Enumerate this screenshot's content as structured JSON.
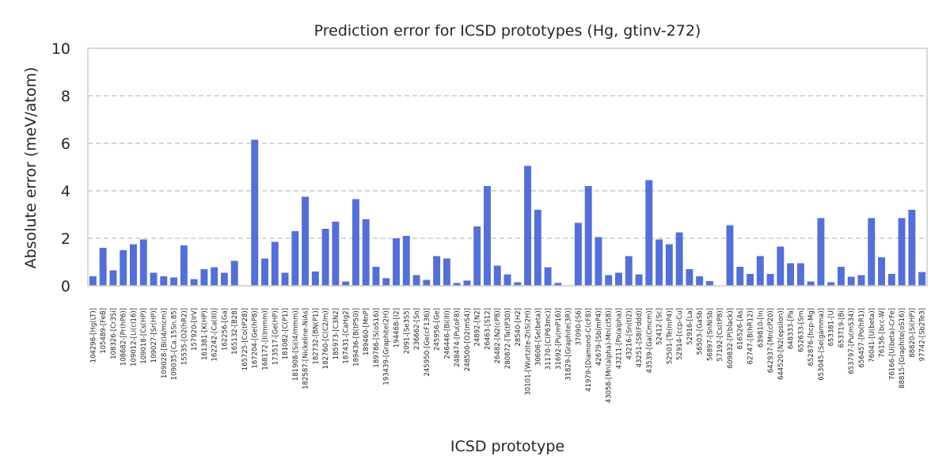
{
  "chart_data": {
    "type": "bar",
    "title": "Prediction error for ICSD prototypes (Hg, gtinv-272)",
    "xlabel": "ICSD prototype",
    "ylabel": "Absolute error (meV/atom)",
    "ylim": [
      0,
      10
    ],
    "yticks": [
      0,
      2,
      4,
      6,
      8,
      10
    ],
    "grid": "y-dashed",
    "bar_color": "#5470d6",
    "grid_color": "#cccccc",
    "categories": [
      "104296-[Hg(LT)]",
      "105489-[FeB]",
      "108326-[Cr3Si]",
      "108682-[Pr(hP6)]",
      "109012-[Li(cI16)]",
      "109018-[Cs(HP)]",
      "109027-[Sr(HP)]",
      "109028-[Bi(I4/mcm)]",
      "109035-[Ca.15Sn.85]",
      "15535-[O2(hR2)]",
      "157920-[IrV]",
      "161381-[K(HP)]",
      "162242-[Ca(III)]",
      "162256-[Ga]",
      "165132-[B28]",
      "165725-[Co(tP28)]",
      "167204-[Ge(hP8)]",
      "168172-[I(Immm)]",
      "173517-[Ge(HP)]",
      "181082-[C(P1)]",
      "181908-[Si(I4/mmm)]",
      "182587-[Nickeline-NiAs]",
      "182732-[BN(P1)]",
      "182760-[C(C2/m)]",
      "185973-[C3N2]",
      "187431-[CaHg2]",
      "189436-[B(tP50)]",
      "189460-[MnP]",
      "189786-[S(oS16)]",
      "193439-[Graphite(2H)]",
      "194468-[I2]",
      "2091-[Se3S5]",
      "236662-[Sn]",
      "245950-[Ge(cF136)]",
      "245956-[Ge]",
      "246446-[Bi(III)]",
      "248474-[Pu(oF8)]",
      "248500-[O2(mS4)]",
      "24892-[N2]",
      "26463-[S12]",
      "26482-[N2(cP8)]",
      "280872-[Ta(tP30)]",
      "28540-[H2]",
      "30101-[Wurtzite-ZnS(2H)]",
      "30606-[Se(beta)]",
      "31170-[C(P63mc)]",
      "31692-[Pu(mP16)]",
      "31829-[Graphite(3R)]",
      "37090-[S6]",
      "41979-[Diamond-C(cF8)]",
      "42679-[Sb(mP4)]",
      "43058-[Mn(alpha)-Mn(cI58)]",
      "43211-[Po(alpha)]",
      "43216-[Sn(tI2)]",
      "43251-[S8(Fddd)]",
      "43539-[Ga(Cmcm)]",
      "52412-[Sc]",
      "52501-[Te(mP4)]",
      "52914-[ccp-Cu]",
      "52916-[La]",
      "56503-[GaSb]",
      "56897-[SnNiSb]",
      "57192-[Cs(tP8)]",
      "609832-[P(black)]",
      "616526-[As]",
      "62747-[B(hR12)]",
      "639810-[In]",
      "642937-[Mn(cP20)]",
      "644520-[N2(epsilon)]",
      "648333-[Pa]",
      "652633-[Sm]",
      "652876-[hcp-Mg]",
      "653045-[Se(gamma)]",
      "653381-[U]",
      "653719-[Bi]",
      "653797-[Pu(mS34)]",
      "656457-[Po(hR1)]",
      "76041-[U(beta)]",
      "76156-[bcc-W]",
      "76166-[U(beta)-CrFe]",
      "88815-[Graphite(oS16)]",
      "88820-[Si(HP)]",
      "97742-[Sb2Te3]"
    ],
    "values": [
      0.4,
      1.6,
      0.65,
      1.5,
      1.75,
      1.95,
      0.55,
      0.4,
      0.35,
      1.7,
      0.28,
      0.7,
      0.78,
      0.55,
      1.05,
      0.0,
      6.15,
      1.15,
      1.85,
      0.55,
      2.3,
      3.75,
      0.6,
      2.4,
      2.7,
      0.18,
      3.65,
      2.8,
      0.8,
      0.32,
      2.0,
      2.1,
      0.45,
      0.25,
      1.25,
      1.15,
      0.12,
      0.22,
      2.5,
      4.2,
      0.85,
      0.48,
      0.15,
      5.05,
      3.2,
      0.78,
      0.12,
      0.0,
      2.65,
      4.2,
      2.05,
      0.45,
      0.55,
      1.25,
      0.48,
      4.45,
      1.95,
      1.75,
      2.25,
      0.7,
      0.4,
      0.2,
      0.0,
      2.55,
      0.8,
      0.5,
      1.25,
      0.5,
      1.65,
      0.95,
      0.95,
      0.18,
      2.85,
      0.15,
      0.8,
      0.38,
      0.45,
      2.85,
      1.2,
      0.5,
      2.85,
      3.2,
      0.58
    ]
  }
}
